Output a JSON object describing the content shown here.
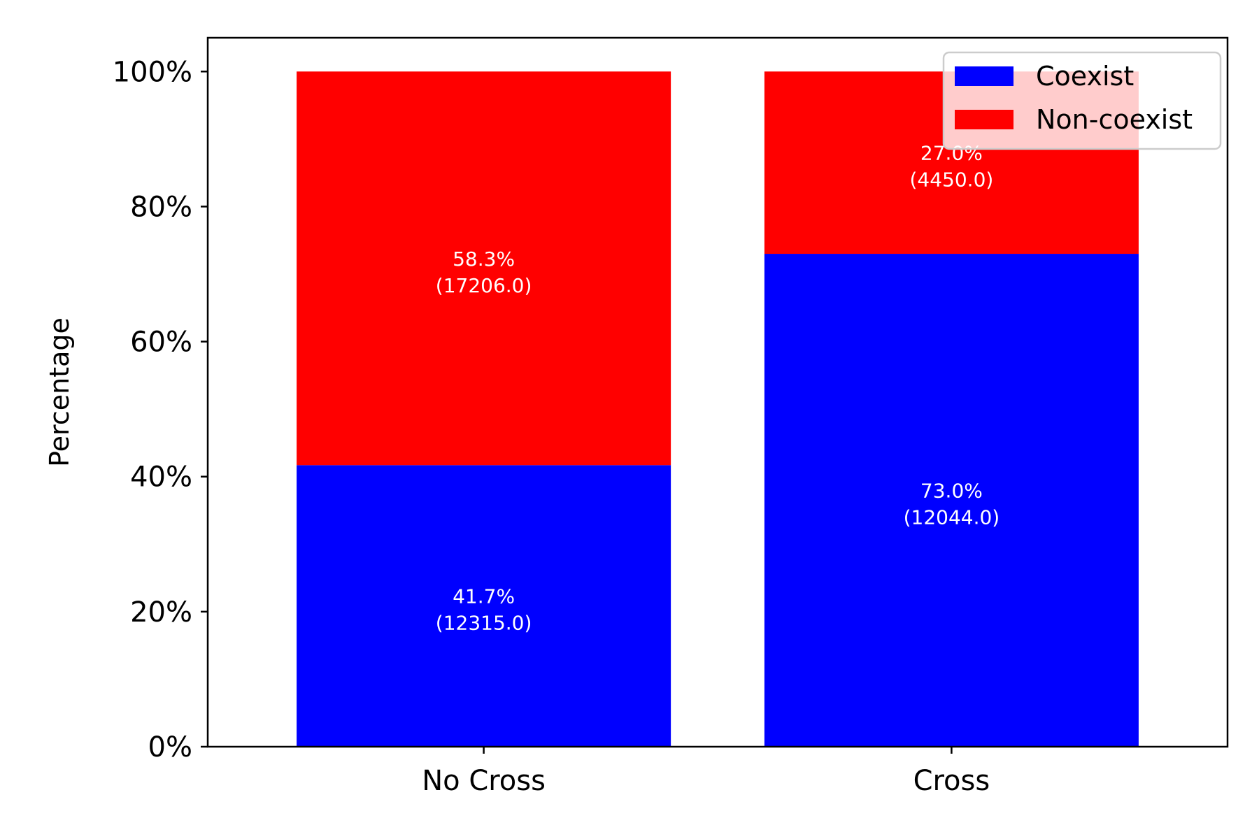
{
  "chart_data": {
    "type": "bar",
    "stacked": true,
    "categories": [
      "No Cross",
      "Cross"
    ],
    "series": [
      {
        "name": "Coexist",
        "color": "#0000ff",
        "values": [
          41.7,
          73.0
        ],
        "labels": [
          "41.7%\n(12315.0)",
          "73.0%\n(12044.0)"
        ]
      },
      {
        "name": "Non-coexist",
        "color": "#ff0000",
        "values": [
          58.3,
          27.0
        ],
        "labels": [
          "58.3%\n(17206.0)",
          "27.0%\n(4450.0)"
        ]
      }
    ],
    "ylabel": "Percentage",
    "xlabel": "",
    "ylim": [
      0,
      105
    ],
    "yticks": [
      0,
      20,
      40,
      60,
      80,
      100
    ],
    "ytick_labels": [
      "0%",
      "20%",
      "40%",
      "60%",
      "80%",
      "100%"
    ],
    "grid": false,
    "legend_position": "upper right"
  }
}
